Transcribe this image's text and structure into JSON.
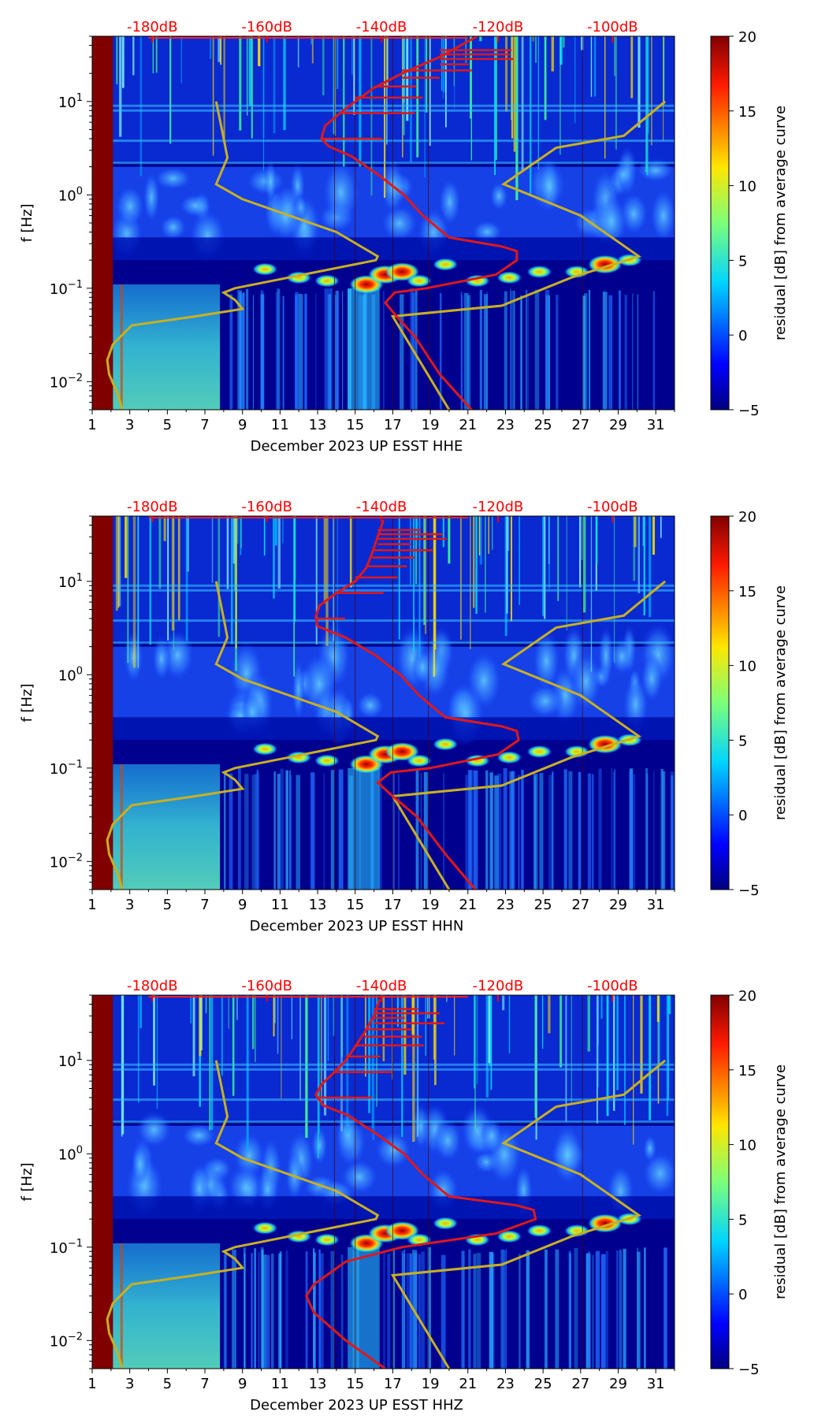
{
  "chart_data": [
    {
      "type": "heatmap",
      "channel": "HHE",
      "xlabel": "December 2023 UP ESST  HHE",
      "ylabel": "f [Hz]",
      "x_ticks": [
        "1",
        "3",
        "5",
        "7",
        "9",
        "11",
        "13",
        "15",
        "17",
        "19",
        "21",
        "23",
        "25",
        "27",
        "29",
        "31"
      ],
      "xlim": [
        1,
        32
      ],
      "y_ticks": [
        {
          "base": "10",
          "exp": "1"
        },
        {
          "base": "10",
          "exp": "0"
        },
        {
          "base": "10",
          "exp": "−1"
        },
        {
          "base": "10",
          "exp": "−2"
        }
      ],
      "ylim_hz": [
        0.005,
        50
      ],
      "top_ticks": [
        "-180dB",
        "-160dB",
        "-140dB",
        "-120dB",
        "-100dB"
      ],
      "colorbar": {
        "label": "residual [dB] from average curve",
        "ticks": [
          "20",
          "15",
          "10",
          "5",
          "0",
          "−5"
        ],
        "range": [
          -5,
          20
        ]
      },
      "red_curve": [
        [
          21.2,
          0.005
        ],
        [
          19.5,
          0.012
        ],
        [
          18.2,
          0.03
        ],
        [
          17.2,
          0.05
        ],
        [
          16.6,
          0.07
        ],
        [
          17.1,
          0.09
        ],
        [
          18.8,
          0.1
        ],
        [
          22.5,
          0.14
        ],
        [
          23.6,
          0.2
        ],
        [
          23.6,
          0.25
        ],
        [
          22.8,
          0.28
        ],
        [
          20,
          0.35
        ],
        [
          18.6,
          0.6
        ],
        [
          17.6,
          1.0
        ],
        [
          16.3,
          1.6
        ],
        [
          14.8,
          2.6
        ],
        [
          13.6,
          3.3
        ],
        [
          13.2,
          4.0
        ],
        [
          13.4,
          5.5
        ],
        [
          14.2,
          7.5
        ],
        [
          15,
          10
        ],
        [
          16,
          14
        ],
        [
          17.5,
          20
        ],
        [
          19.5,
          30
        ],
        [
          21.5,
          50
        ]
      ],
      "yellow_curve": [
        [
          2.6,
          0.005
        ],
        [
          2.4,
          0.007
        ],
        [
          1.9,
          0.012
        ],
        [
          1.8,
          0.017
        ],
        [
          2.1,
          0.025
        ],
        [
          3.1,
          0.04
        ],
        [
          6.5,
          0.05
        ],
        [
          9,
          0.06
        ],
        [
          8.6,
          0.075
        ],
        [
          8.0,
          0.09
        ],
        [
          8.6,
          0.1
        ],
        [
          16.1,
          0.2
        ],
        [
          16.2,
          0.22
        ],
        [
          14,
          0.4
        ],
        [
          9,
          0.9
        ],
        [
          7.6,
          1.3
        ],
        [
          8.2,
          2.5
        ],
        [
          8.0,
          4
        ],
        [
          7.6,
          10
        ]
      ],
      "yellow_curve_right": [
        [
          20.0,
          0.005
        ],
        [
          17.0,
          0.05
        ],
        [
          22.8,
          0.065
        ],
        [
          26.5,
          0.13
        ],
        [
          30.1,
          0.22
        ],
        [
          27,
          0.6
        ],
        [
          22.9,
          1.3
        ],
        [
          25.7,
          3.2
        ],
        [
          29.3,
          4.3
        ],
        [
          31.5,
          10
        ]
      ]
    },
    {
      "type": "heatmap",
      "channel": "HHN",
      "xlabel": "December 2023 UP ESST  HHN",
      "ylabel": "f [Hz]",
      "x_ticks": [
        "1",
        "3",
        "5",
        "7",
        "9",
        "11",
        "13",
        "15",
        "17",
        "19",
        "21",
        "23",
        "25",
        "27",
        "29",
        "31"
      ],
      "xlim": [
        1,
        32
      ],
      "y_ticks": [
        {
          "base": "10",
          "exp": "1"
        },
        {
          "base": "10",
          "exp": "0"
        },
        {
          "base": "10",
          "exp": "−1"
        },
        {
          "base": "10",
          "exp": "−2"
        }
      ],
      "ylim_hz": [
        0.005,
        50
      ],
      "top_ticks": [
        "-180dB",
        "-160dB",
        "-140dB",
        "-120dB",
        "-100dB"
      ],
      "colorbar": {
        "label": "residual [dB] from average curve",
        "ticks": [
          "20",
          "15",
          "10",
          "5",
          "0",
          "−5"
        ],
        "range": [
          -5,
          20
        ]
      },
      "red_curve": [
        [
          21.4,
          0.005
        ],
        [
          19.8,
          0.012
        ],
        [
          18.3,
          0.03
        ],
        [
          17.0,
          0.05
        ],
        [
          16.2,
          0.07
        ],
        [
          16.9,
          0.09
        ],
        [
          19,
          0.1
        ],
        [
          22.6,
          0.14
        ],
        [
          23.7,
          0.2
        ],
        [
          23.6,
          0.25
        ],
        [
          22.8,
          0.28
        ],
        [
          19.8,
          0.35
        ],
        [
          18.4,
          0.6
        ],
        [
          17.4,
          1.0
        ],
        [
          16.1,
          1.6
        ],
        [
          14.5,
          2.5
        ],
        [
          13.0,
          3.3
        ],
        [
          12.9,
          4.2
        ],
        [
          13.1,
          5.5
        ],
        [
          14.0,
          7.5
        ],
        [
          15,
          10
        ],
        [
          15.6,
          14
        ],
        [
          15.9,
          20
        ],
        [
          16.2,
          30
        ],
        [
          16.5,
          45
        ]
      ],
      "yellow_curve": [
        [
          2.6,
          0.005
        ],
        [
          2.4,
          0.007
        ],
        [
          1.9,
          0.012
        ],
        [
          1.8,
          0.017
        ],
        [
          2.1,
          0.025
        ],
        [
          3.1,
          0.04
        ],
        [
          6.5,
          0.05
        ],
        [
          9,
          0.06
        ],
        [
          8.6,
          0.075
        ],
        [
          8.0,
          0.09
        ],
        [
          8.6,
          0.1
        ],
        [
          16.1,
          0.2
        ],
        [
          16.2,
          0.22
        ],
        [
          14,
          0.4
        ],
        [
          9,
          0.9
        ],
        [
          7.6,
          1.3
        ],
        [
          8.2,
          2.5
        ],
        [
          8.0,
          4
        ],
        [
          7.6,
          10
        ]
      ],
      "yellow_curve_right": [
        [
          20.0,
          0.005
        ],
        [
          17.0,
          0.05
        ],
        [
          22.8,
          0.065
        ],
        [
          26.5,
          0.13
        ],
        [
          30.1,
          0.22
        ],
        [
          27,
          0.6
        ],
        [
          22.9,
          1.3
        ],
        [
          25.7,
          3.2
        ],
        [
          29.3,
          4.3
        ],
        [
          31.5,
          10
        ]
      ]
    },
    {
      "type": "heatmap",
      "channel": "HHZ",
      "xlabel": "December 2023 UP ESST  HHZ",
      "ylabel": "f [Hz]",
      "x_ticks": [
        "1",
        "3",
        "5",
        "7",
        "9",
        "11",
        "13",
        "15",
        "17",
        "19",
        "21",
        "23",
        "25",
        "27",
        "29",
        "31"
      ],
      "xlim": [
        1,
        32
      ],
      "y_ticks": [
        {
          "base": "10",
          "exp": "1"
        },
        {
          "base": "10",
          "exp": "0"
        },
        {
          "base": "10",
          "exp": "−1"
        },
        {
          "base": "10",
          "exp": "−2"
        }
      ],
      "ylim_hz": [
        0.005,
        50
      ],
      "top_ticks": [
        "-180dB",
        "-160dB",
        "-140dB",
        "-120dB",
        "-100dB"
      ],
      "colorbar": {
        "label": "residual [dB] from average curve",
        "ticks": [
          "20",
          "15",
          "10",
          "5",
          "0",
          "−5"
        ],
        "range": [
          -5,
          20
        ]
      },
      "red_curve": [
        [
          16.6,
          0.005
        ],
        [
          14.5,
          0.01
        ],
        [
          12.8,
          0.02
        ],
        [
          12.4,
          0.03
        ],
        [
          12.8,
          0.04
        ],
        [
          14.5,
          0.07
        ],
        [
          17.5,
          0.1
        ],
        [
          22.5,
          0.14
        ],
        [
          24.6,
          0.2
        ],
        [
          24.5,
          0.25
        ],
        [
          23.6,
          0.28
        ],
        [
          20,
          0.35
        ],
        [
          18.6,
          0.6
        ],
        [
          17.6,
          1.0
        ],
        [
          16.2,
          1.6
        ],
        [
          14.6,
          2.6
        ],
        [
          13.3,
          3.3
        ],
        [
          12.9,
          4.3
        ],
        [
          13.2,
          5.5
        ],
        [
          13.9,
          7.5
        ],
        [
          14.5,
          10
        ],
        [
          15,
          14
        ],
        [
          15.5,
          20
        ],
        [
          16,
          30
        ],
        [
          16.3,
          45
        ]
      ],
      "yellow_curve": [
        [
          2.6,
          0.005
        ],
        [
          2.4,
          0.007
        ],
        [
          1.9,
          0.012
        ],
        [
          1.8,
          0.017
        ],
        [
          2.1,
          0.025
        ],
        [
          3.1,
          0.04
        ],
        [
          6.5,
          0.05
        ],
        [
          9,
          0.06
        ],
        [
          8.6,
          0.075
        ],
        [
          8.0,
          0.09
        ],
        [
          8.6,
          0.1
        ],
        [
          16.1,
          0.2
        ],
        [
          16.2,
          0.22
        ],
        [
          14,
          0.4
        ],
        [
          9,
          0.9
        ],
        [
          7.6,
          1.3
        ],
        [
          8.2,
          2.5
        ],
        [
          8.0,
          4
        ],
        [
          7.6,
          10
        ]
      ],
      "yellow_curve_right": [
        [
          20.0,
          0.005
        ],
        [
          17.0,
          0.05
        ],
        [
          22.8,
          0.065
        ],
        [
          26.5,
          0.13
        ],
        [
          30.1,
          0.22
        ],
        [
          27,
          0.6
        ],
        [
          22.9,
          1.3
        ],
        [
          25.7,
          3.2
        ],
        [
          29.3,
          4.3
        ],
        [
          31.5,
          10
        ]
      ]
    }
  ],
  "colors": {
    "red_curve": "#e01818",
    "yellow_curve": "#c8b022",
    "top_label": "#ff0000",
    "background_dark": "#00008f",
    "left_band": "#800000"
  }
}
